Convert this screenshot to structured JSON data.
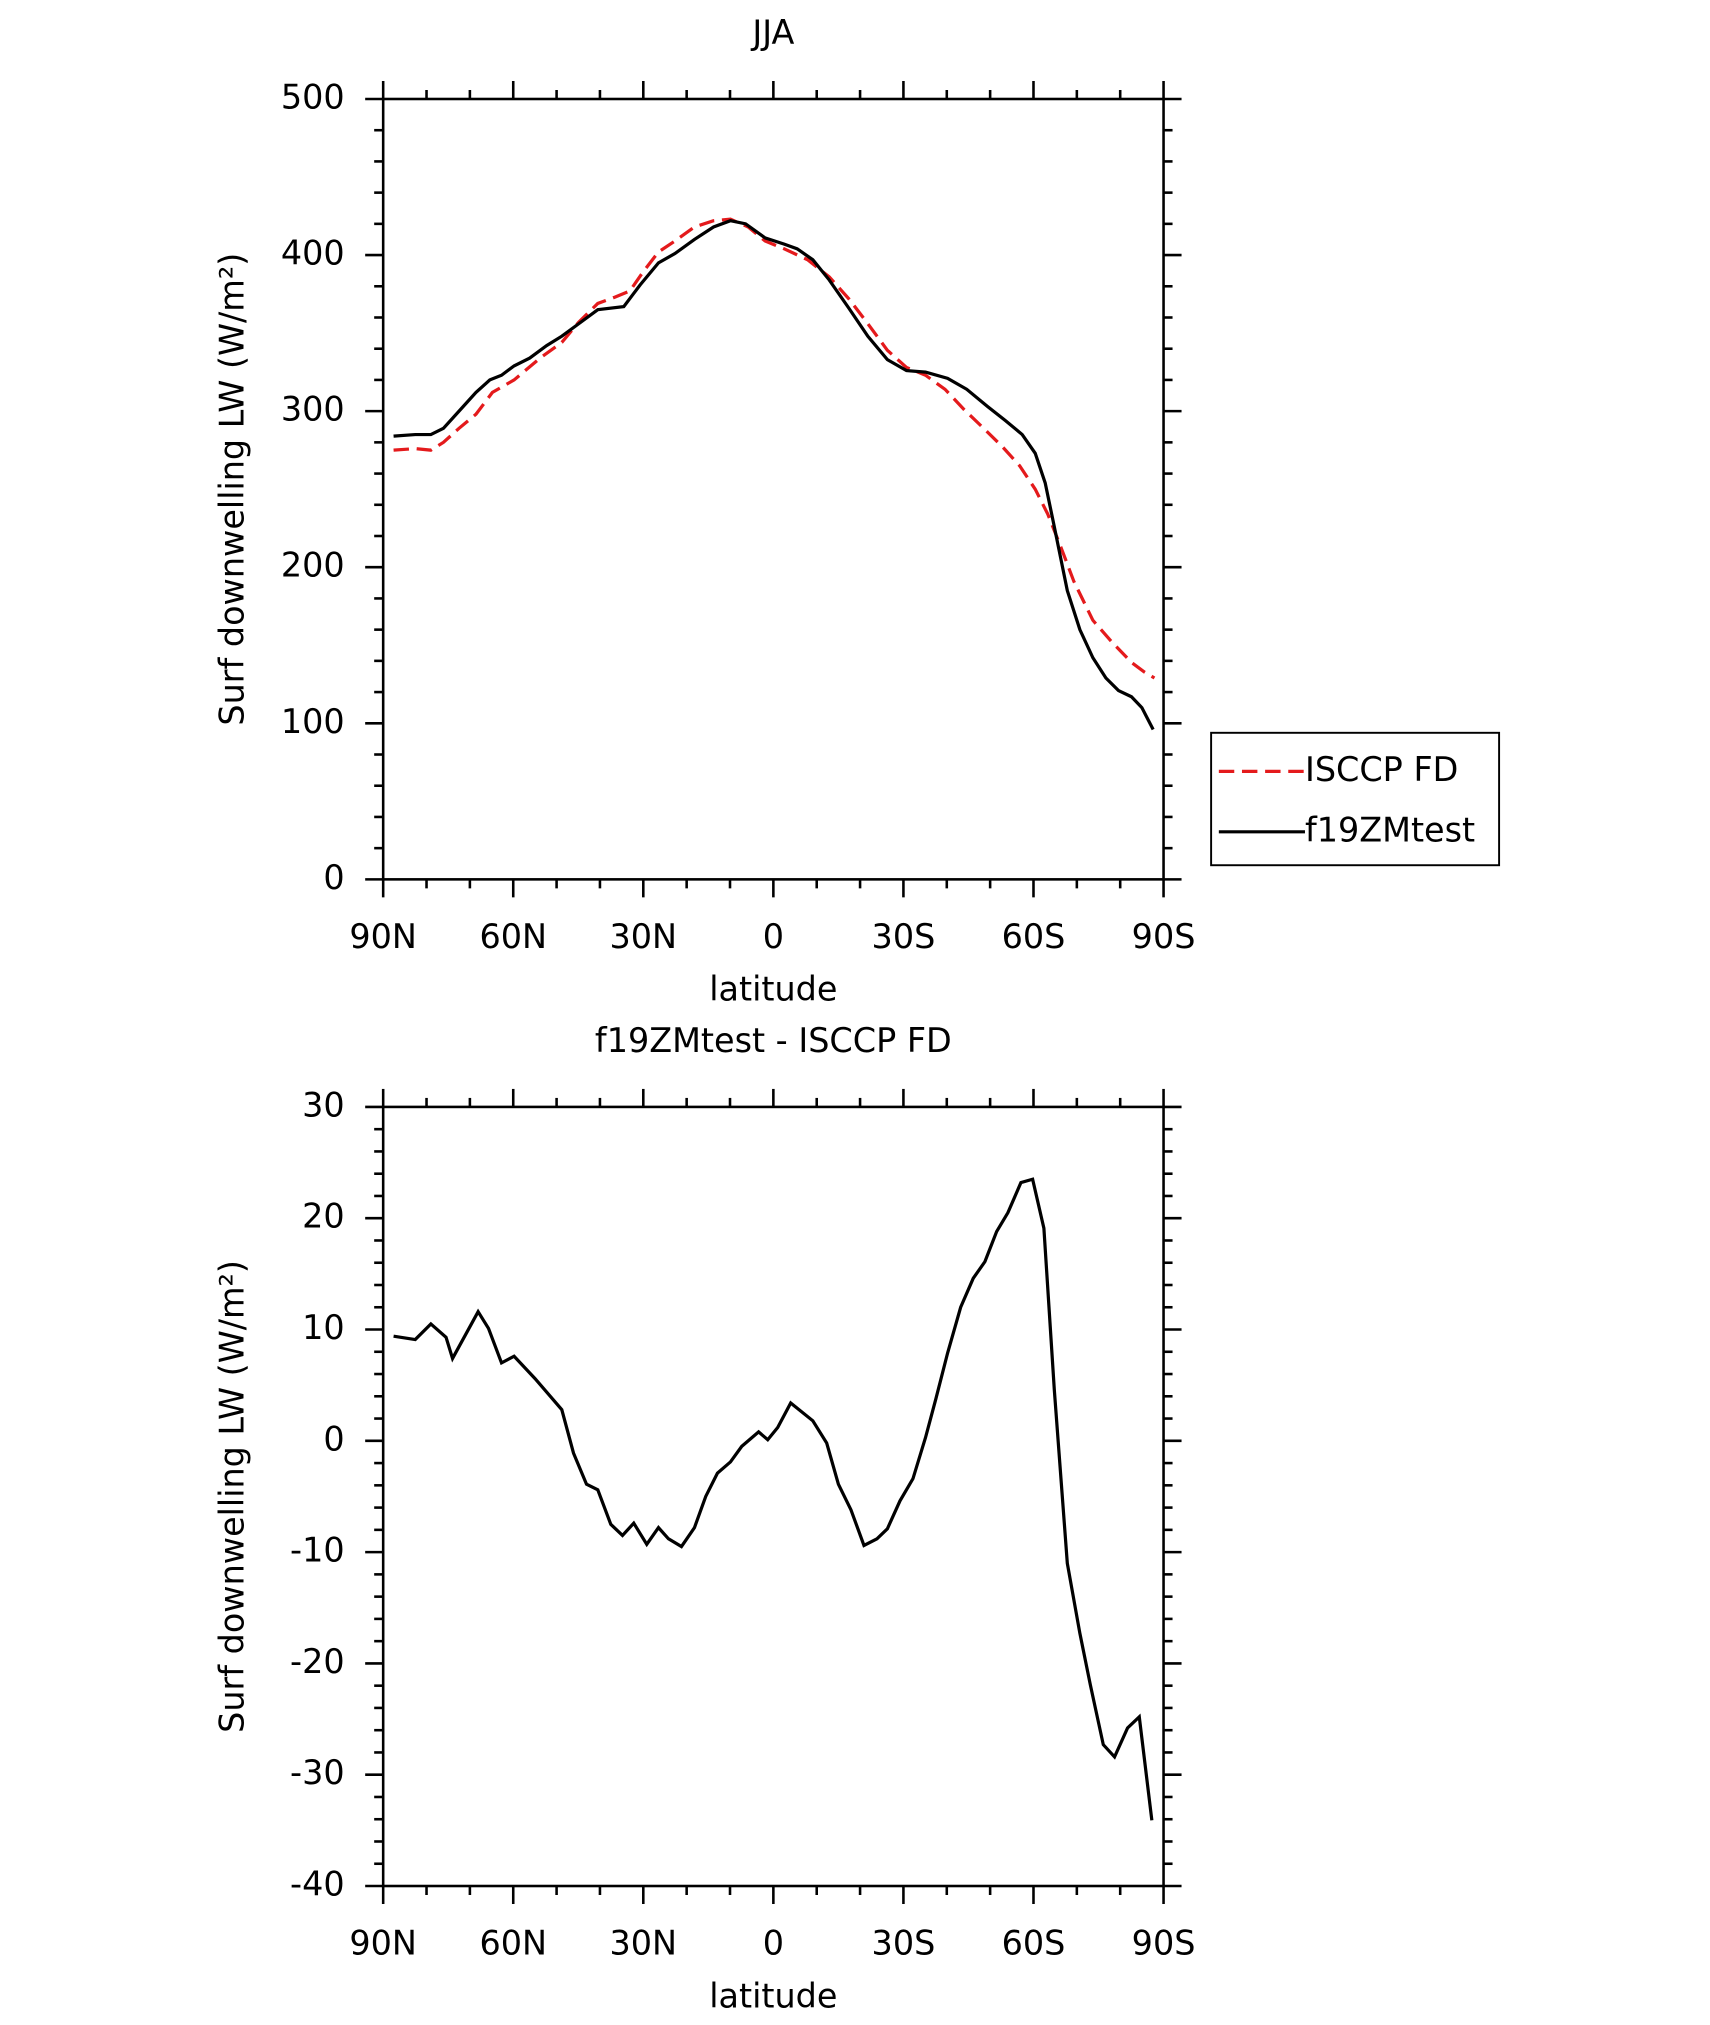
{
  "chart_data": [
    {
      "type": "line",
      "title": "JJA",
      "xlabel": "latitude",
      "ylabel": "Surf downwelling LW (W/m²)",
      "xlim": [
        90,
        -90
      ],
      "ylim": [
        0,
        500
      ],
      "xticks": [
        {
          "value": 90,
          "label": "90N"
        },
        {
          "value": 60,
          "label": "60N"
        },
        {
          "value": 30,
          "label": "30N"
        },
        0,
        {
          "value": -30,
          "label": "30S"
        },
        {
          "value": -60,
          "label": "60S"
        },
        {
          "value": -90,
          "label": "90S"
        }
      ],
      "yticks": [
        0,
        100,
        200,
        300,
        400,
        500
      ],
      "legend": "right",
      "series": [
        {
          "name": "ISCCP FD",
          "color": "#e41a1c",
          "dash": true,
          "x": [
            87.6,
            82.6,
            79.0,
            76.1,
            72.5,
            68.6,
            64.8,
            59.8,
            53.8,
            48.8,
            44.9,
            40.5,
            36.6,
            33.1,
            30.1,
            26.5,
            22.7,
            18.2,
            13.8,
            9.9,
            5.8,
            1.9,
            -2.5,
            -7.9,
            -12.9,
            -17.4,
            -21.8,
            -26.3,
            -30.7,
            -35.1,
            -39.6,
            -44.0,
            -48.5,
            -52.9,
            -56.8,
            -60.4,
            -63.3,
            -66.3,
            -69.3,
            -73.7,
            -78.1,
            -82.6,
            -85.5,
            -87.9
          ],
          "values": [
            275,
            276,
            275,
            280,
            289,
            298,
            312,
            320,
            334,
            344,
            357,
            369,
            373,
            377,
            389,
            402,
            409,
            418,
            422,
            423,
            418,
            409,
            404,
            397,
            386,
            372,
            356,
            339,
            328,
            323,
            314,
            301,
            289,
            277,
            265,
            250,
            234,
            213,
            191,
            166,
            152,
            139,
            133,
            129
          ]
        },
        {
          "name": "f19ZMtest",
          "color": "#000000",
          "dash": false,
          "x": [
            87.6,
            82.6,
            79.0,
            76.1,
            72.5,
            68.6,
            65.4,
            62.7,
            59.8,
            56.2,
            52.3,
            48.8,
            44.9,
            40.5,
            34.5,
            30.7,
            26.5,
            22.7,
            18.2,
            13.8,
            9.9,
            6.4,
            1.9,
            -2.5,
            -5.5,
            -9.1,
            -12.9,
            -17.4,
            -21.8,
            -26.3,
            -30.7,
            -35.1,
            -40.2,
            -44.6,
            -49.4,
            -53.5,
            -57.4,
            -60.4,
            -62.7,
            -64.8,
            -67.8,
            -70.7,
            -73.7,
            -76.7,
            -79.6,
            -82.6,
            -85.0,
            -87.6
          ],
          "values": [
            284,
            285,
            285,
            289,
            300,
            312,
            320,
            323,
            329,
            334,
            342,
            348,
            356,
            365,
            367,
            381,
            395,
            401,
            410,
            418,
            422,
            420,
            411,
            407,
            404,
            397,
            384,
            366,
            348,
            333,
            326,
            325,
            321,
            314,
            303,
            294,
            285,
            273,
            254,
            226,
            185,
            160,
            142,
            129,
            121,
            117,
            110,
            96
          ]
        }
      ]
    },
    {
      "type": "line",
      "title": "f19ZMtest - ISCCP FD",
      "xlabel": "latitude",
      "ylabel": "Surf downwelling LW (W/m²)",
      "xlim": [
        90,
        -90
      ],
      "ylim": [
        -40,
        30
      ],
      "xticks": [
        {
          "value": 90,
          "label": "90N"
        },
        {
          "value": 60,
          "label": "60N"
        },
        {
          "value": 30,
          "label": "30N"
        },
        0,
        {
          "value": -30,
          "label": "30S"
        },
        {
          "value": -60,
          "label": "60S"
        },
        {
          "value": -90,
          "label": "90S"
        }
      ],
      "yticks": [
        -40,
        -30,
        -20,
        -10,
        0,
        10,
        20,
        30
      ],
      "series": [
        {
          "color": "#000000",
          "dash": false,
          "x": [
            87.6,
            82.6,
            79.0,
            75.5,
            74.0,
            68.1,
            65.7,
            62.7,
            59.8,
            55.0,
            48.8,
            46.1,
            43.1,
            40.5,
            37.5,
            34.8,
            32.2,
            29.2,
            26.5,
            24.2,
            21.2,
            18.2,
            15.6,
            12.9,
            9.9,
            7.3,
            3.4,
            1.3,
            -1.0,
            -4.0,
            -9.1,
            -12.3,
            -15.0,
            -17.9,
            -20.9,
            -23.9,
            -26.3,
            -29.2,
            -32.2,
            -35.1,
            -37.5,
            -40.2,
            -43.2,
            -46.1,
            -48.8,
            -51.5,
            -54.1,
            -57.1,
            -59.8,
            -62.4,
            -64.8,
            -67.8,
            -70.7,
            -73.1,
            -76.1,
            -78.7,
            -81.7,
            -84.4,
            -87.3
          ],
          "values": [
            9.4,
            9.1,
            10.5,
            9.3,
            7.4,
            11.6,
            10.1,
            7.0,
            7.6,
            5.6,
            2.8,
            -1.1,
            -3.9,
            -4.4,
            -7.5,
            -8.5,
            -7.4,
            -9.3,
            -7.8,
            -8.8,
            -9.5,
            -7.8,
            -5.0,
            -2.9,
            -1.9,
            -0.5,
            0.8,
            0.1,
            1.2,
            3.4,
            1.8,
            -0.2,
            -3.9,
            -6.2,
            -9.4,
            -8.8,
            -7.9,
            -5.4,
            -3.4,
            0.3,
            3.8,
            7.9,
            12.0,
            14.6,
            16.1,
            18.8,
            20.5,
            23.2,
            23.5,
            19.1,
            4.6,
            -11.0,
            -17.3,
            -21.9,
            -27.3,
            -28.4,
            -25.8,
            -24.8,
            -34.1
          ]
        }
      ]
    }
  ]
}
